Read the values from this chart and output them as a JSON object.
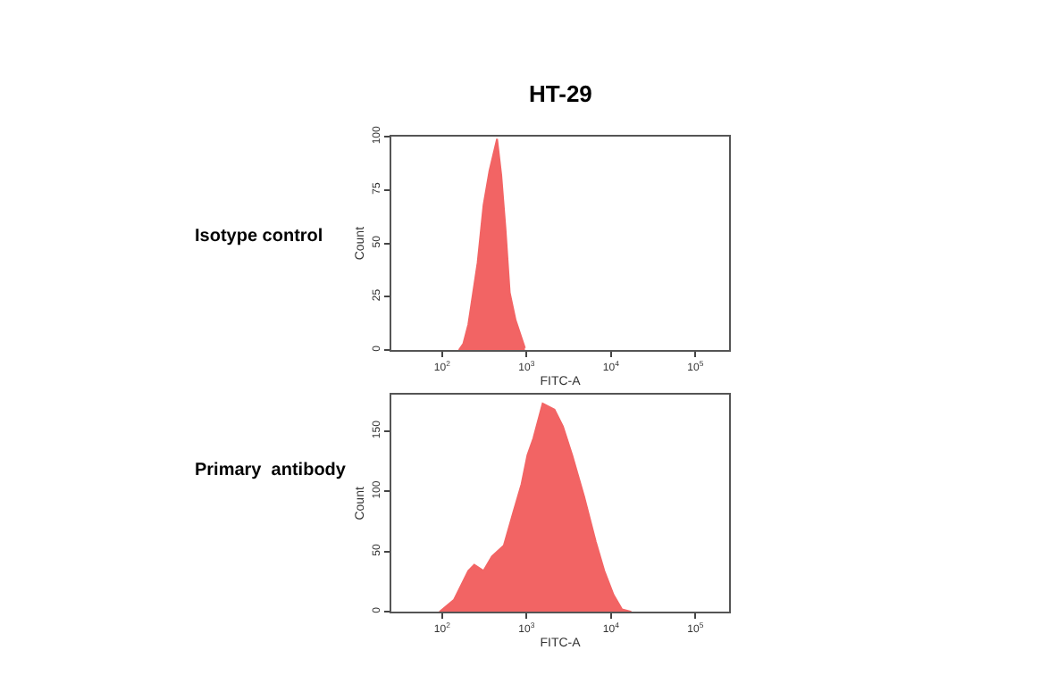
{
  "chart_data": [
    {
      "type": "area",
      "title": "HT-29",
      "annotations": [
        "Isotype control"
      ],
      "xlabel": "FITC-A",
      "ylabel": "Count",
      "log": "x",
      "x": [
        158,
        178,
        204,
        263,
        309,
        363,
        447,
        501,
        562,
        631,
        741,
        955
      ],
      "series": [
        {
          "color": "#f26464",
          "values": [
            0,
            3,
            12,
            41,
            68,
            84,
            99,
            82,
            57,
            27,
            14,
            1
          ]
        }
      ],
      "xlim": [
        25,
        250000
      ],
      "xticks": [
        {
          "value": 100,
          "label": "10$^{2}$"
        },
        {
          "value": 1000,
          "label": "10$^{3}$"
        },
        {
          "value": 10000,
          "label": "10$^{4}$"
        },
        {
          "value": 100000,
          "label": "10$^{5}$"
        }
      ],
      "ylim": [
        0,
        100
      ],
      "yticks": [
        0,
        25,
        50,
        75,
        100
      ]
    },
    {
      "type": "area",
      "annotations": [
        "Primary  antibody"
      ],
      "xlabel": "FITC-A",
      "ylabel": "Count",
      "log": "x",
      "x": [
        93,
        138,
        204,
        240,
        309,
        389,
        537,
        692,
        871,
        1023,
        1202,
        1549,
        2138,
        2692,
        3467,
        4786,
        6607,
        8318,
        10715,
        13490,
        17378
      ],
      "series": [
        {
          "color": "#f26464",
          "values": [
            0,
            10,
            34,
            39,
            34,
            46,
            55,
            82,
            106,
            130,
            144,
            173,
            168,
            154,
            130,
            96,
            58,
            34,
            14,
            2,
            0
          ]
        }
      ],
      "xlim": [
        25,
        250000
      ],
      "xticks": [
        {
          "value": 100,
          "label": "10$^{2}$"
        },
        {
          "value": 1000,
          "label": "10$^{3}$"
        },
        {
          "value": 10000,
          "label": "10$^{4}$"
        },
        {
          "value": 100000,
          "label": "10$^{5}$"
        }
      ],
      "ylim": [
        0,
        180
      ],
      "yticks": [
        0,
        50,
        100,
        150
      ]
    }
  ]
}
